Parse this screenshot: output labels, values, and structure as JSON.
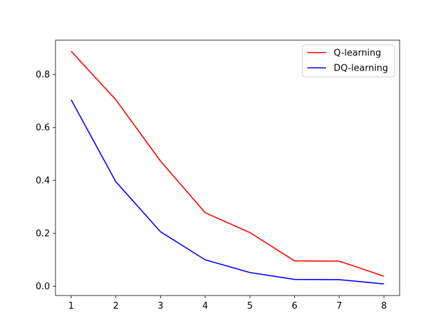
{
  "chart_data": {
    "type": "line",
    "x": [
      1,
      2,
      3,
      4,
      5,
      6,
      7,
      8
    ],
    "series": [
      {
        "name": "Q-learning",
        "color": "#ff0000",
        "values": [
          0.888,
          0.705,
          0.473,
          0.278,
          0.203,
          0.096,
          0.095,
          0.038
        ]
      },
      {
        "name": "DQ-learning",
        "color": "#0000ff",
        "values": [
          0.705,
          0.395,
          0.206,
          0.1,
          0.052,
          0.026,
          0.025,
          0.009
        ]
      }
    ],
    "title": "",
    "xlabel": "",
    "ylabel": "",
    "xlim": [
      0.65,
      8.35
    ],
    "ylim": [
      -0.035,
      0.93
    ],
    "xticks": [
      "1",
      "2",
      "3",
      "4",
      "5",
      "6",
      "7",
      "8"
    ],
    "yticks": [
      "0.0",
      "0.2",
      "0.4",
      "0.6",
      "0.8"
    ],
    "ytick_values": [
      0.0,
      0.2,
      0.4,
      0.6,
      0.8
    ],
    "grid": false,
    "legend_position": "top-right"
  }
}
